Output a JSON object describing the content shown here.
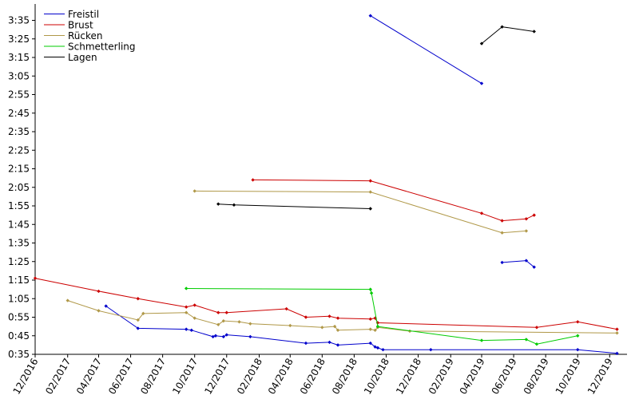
{
  "chart_data": {
    "type": "line",
    "title": "",
    "xlabel": "",
    "ylabel": "",
    "x_tick_labels": [
      "12/2016",
      "02/2017",
      "04/2017",
      "06/2017",
      "08/2017",
      "10/2017",
      "12/2017",
      "02/2018",
      "04/2018",
      "06/2018",
      "08/2018",
      "10/2018",
      "12/2018",
      "02/2019",
      "04/2019",
      "06/2019",
      "08/2019",
      "10/2019",
      "12/2019"
    ],
    "y_tick_labels": [
      "0:35",
      "0:45",
      "0:55",
      "1:05",
      "1:15",
      "1:25",
      "1:35",
      "1:45",
      "1:55",
      "2:05",
      "2:15",
      "2:25",
      "2:35",
      "2:45",
      "2:55",
      "3:05",
      "3:15",
      "3:25",
      "3:35"
    ],
    "xlim": [
      "2016-12-01",
      "2019-12-31"
    ],
    "ylim_seconds": [
      35,
      219
    ],
    "legend_position": "top-left",
    "grid": false,
    "series": [
      {
        "name": "Freistil",
        "color": "#0000cc",
        "segments": [
          [
            [
              "2017-04-15",
              61
            ],
            [
              "2017-06-15",
              49
            ],
            [
              "2017-09-15",
              48.5
            ],
            [
              "2017-09-25",
              48
            ],
            [
              "2017-11-05",
              44.5
            ],
            [
              "2017-11-10",
              45
            ],
            [
              "2017-11-25",
              44.5
            ],
            [
              "2017-12-01",
              45.5
            ],
            [
              "2018-01-15",
              44.5
            ],
            [
              "2018-05-01",
              41
            ],
            [
              "2018-06-15",
              41.5
            ],
            [
              "2018-07-01",
              40
            ],
            [
              "2018-09-01",
              41
            ],
            [
              "2018-09-10",
              39
            ],
            [
              "2018-09-15",
              38.5
            ],
            [
              "2018-09-25",
              37.5
            ],
            [
              "2018-12-25",
              37.5
            ],
            [
              "2019-10-01",
              37.5
            ],
            [
              "2019-12-15",
              35.5
            ]
          ],
          [
            [
              "2018-09-01",
              217.5
            ],
            [
              "2019-04-01",
              181
            ]
          ],
          [
            [
              "2019-05-10",
              84.5
            ],
            [
              "2019-06-25",
              85.5
            ],
            [
              "2019-07-10",
              82
            ]
          ]
        ]
      },
      {
        "name": "Brust",
        "color": "#cc0000",
        "segments": [
          [
            [
              "2016-12-01",
              76
            ],
            [
              "2017-04-01",
              69
            ],
            [
              "2017-06-15",
              65
            ],
            [
              "2017-09-15",
              60.5
            ],
            [
              "2017-10-01",
              61.5
            ],
            [
              "2017-11-15",
              57.5
            ],
            [
              "2017-12-01",
              57.5
            ],
            [
              "2018-03-25",
              59.5
            ],
            [
              "2018-05-01",
              55
            ],
            [
              "2018-06-15",
              55.5
            ],
            [
              "2018-07-01",
              54.5
            ],
            [
              "2018-09-01",
              54
            ],
            [
              "2018-09-10",
              54.5
            ],
            [
              "2018-09-15",
              52
            ],
            [
              "2019-07-15",
              49.5
            ],
            [
              "2019-10-01",
              52.5
            ],
            [
              "2019-12-15",
              48.5
            ]
          ],
          [
            [
              "2018-01-20",
              129
            ],
            [
              "2018-09-01",
              128.5
            ],
            [
              "2019-04-01",
              111
            ],
            [
              "2019-05-10",
              107
            ],
            [
              "2019-06-25",
              108
            ],
            [
              "2019-07-10",
              110
            ]
          ]
        ]
      },
      {
        "name": "Rücken",
        "color": "#b09848",
        "segments": [
          [
            [
              "2017-02-01",
              64
            ],
            [
              "2017-04-01",
              58.5
            ],
            [
              "2017-06-15",
              53.5
            ],
            [
              "2017-06-25",
              57
            ],
            [
              "2017-09-15",
              57.5
            ],
            [
              "2017-10-01",
              54.5
            ],
            [
              "2017-11-15",
              51
            ],
            [
              "2017-11-25",
              53
            ],
            [
              "2017-12-25",
              52.5
            ],
            [
              "2018-01-15",
              51.5
            ],
            [
              "2018-04-01",
              50.5
            ],
            [
              "2018-06-01",
              49.5
            ],
            [
              "2018-06-25",
              50
            ],
            [
              "2018-07-01",
              48
            ],
            [
              "2018-09-01",
              48.5
            ],
            [
              "2018-09-10",
              48
            ],
            [
              "2018-09-15",
              49.5
            ],
            [
              "2018-11-15",
              47.5
            ],
            [
              "2019-12-15",
              46.5
            ]
          ],
          [
            [
              "2017-10-01",
              123
            ],
            [
              "2018-09-01",
              122.5
            ],
            [
              "2019-05-10",
              100.5
            ],
            [
              "2019-06-25",
              101.5
            ]
          ]
        ]
      },
      {
        "name": "Schmetterling",
        "color": "#00cc00",
        "segments": [
          [
            [
              "2017-09-15",
              70.5
            ],
            [
              "2018-09-01",
              70
            ],
            [
              "2018-09-03",
              68
            ],
            [
              "2018-09-15",
              50
            ],
            [
              "2019-04-01",
              42.5
            ],
            [
              "2019-06-25",
              43
            ],
            [
              "2019-07-15",
              40.5
            ],
            [
              "2019-10-01",
              45
            ]
          ]
        ]
      },
      {
        "name": "Lagen",
        "color": "#000000",
        "segments": [
          [
            [
              "2017-11-15",
              116
            ],
            [
              "2017-12-15",
              115.5
            ],
            [
              "2018-09-01",
              113.5
            ]
          ],
          [
            [
              "2019-04-01",
              202.5
            ],
            [
              "2019-05-10",
              211.5
            ],
            [
              "2019-07-10",
              209
            ]
          ]
        ]
      }
    ]
  }
}
